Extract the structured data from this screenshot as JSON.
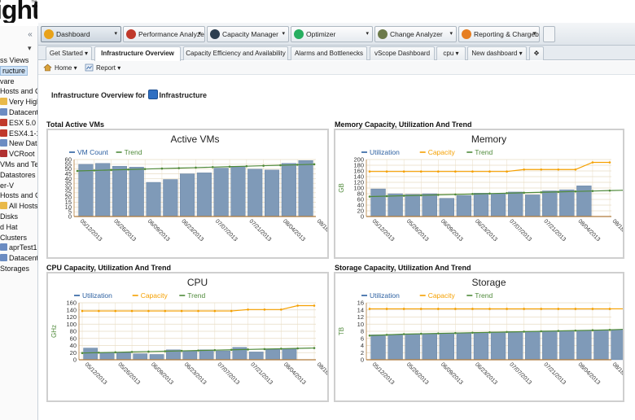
{
  "logo": {
    "text": "ight",
    "mark": "™"
  },
  "sidebar": {
    "collapse_icon": "double-chevron-left",
    "items": [
      {
        "label": "ss Views",
        "icon": ""
      },
      {
        "label": "ructure",
        "icon": "",
        "selected": true
      },
      {
        "label": "vare",
        "icon": ""
      },
      {
        "label": "Hosts and C",
        "icon": ""
      },
      {
        "label": "Very High",
        "icon": "folder"
      },
      {
        "label": "Datacente",
        "icon": "datacenter"
      },
      {
        "label": "ESX 5.0",
        "icon": "host-warning"
      },
      {
        "label": "ESX4.1-1",
        "icon": "host-warning"
      },
      {
        "label": "New Data",
        "icon": "datacenter"
      },
      {
        "label": "VCRoot",
        "icon": "vc"
      },
      {
        "label": "VMs and Ten",
        "icon": ""
      },
      {
        "label": "Datastores",
        "icon": ""
      },
      {
        "label": "er-V",
        "icon": ""
      },
      {
        "label": "Hosts and C",
        "icon": ""
      },
      {
        "label": "All Hosts",
        "icon": "folder"
      },
      {
        "label": "Disks",
        "icon": ""
      },
      {
        "label": "d Hat",
        "icon": ""
      },
      {
        "label": "Clusters",
        "icon": ""
      },
      {
        "label": "aprTest1",
        "icon": "datacenter"
      },
      {
        "label": "Datacente",
        "icon": "datacenter"
      },
      {
        "label": "Storages",
        "icon": ""
      }
    ]
  },
  "toolbar": [
    {
      "label": "Dashboard",
      "icon": "dashboard-icon",
      "color": "#e8a21a",
      "active": true
    },
    {
      "label": "Performance Analyzer",
      "icon": "performance-icon",
      "color": "#c0392b"
    },
    {
      "label": "Capacity Manager",
      "icon": "capacity-icon",
      "color": "#2c3e50"
    },
    {
      "label": "Optimizer",
      "icon": "optimizer-icon",
      "color": "#27ae60"
    },
    {
      "label": "Change Analyzer",
      "icon": "change-icon",
      "color": "#6c7a4a"
    },
    {
      "label": "Reporting & Chargeback",
      "icon": "reporting-icon",
      "color": "#e67e22"
    }
  ],
  "tabs": [
    {
      "label": "Get Started",
      "dropdown": true
    },
    {
      "label": "Infrastructure Overview",
      "active": true
    },
    {
      "label": "Capacity Efficiency and Availability"
    },
    {
      "label": "Alarms and Bottlenecks"
    },
    {
      "label": "vScope Dashboard"
    },
    {
      "label": "cpu",
      "dropdown": true
    },
    {
      "label": "New dashboard",
      "dropdown": true
    }
  ],
  "tab_add_icon": "add-tab-icon",
  "subbar": {
    "home_label": "Home",
    "report_label": "Report"
  },
  "overview": {
    "prefix": "Infrastructure Overview for",
    "target": "Infrastructure"
  },
  "colors": {
    "bar": "#7f9ab8",
    "bar_edge": "#5e7a9b",
    "trend": "#4f8a3a",
    "capacity": "#f5a000",
    "utilization_legend": "#2b5fa0",
    "grid": "#e8dcc4",
    "axis": "#b07a3a"
  },
  "charts": [
    {
      "panel_title": "Total Active VMs",
      "chart_data": {
        "type": "bar",
        "title": "Active VMs",
        "ylabel": "",
        "ylim": [
          0,
          60
        ],
        "yticks": [
          0,
          5,
          10,
          15,
          20,
          25,
          30,
          35,
          40,
          45,
          50,
          55,
          60
        ],
        "xtick_labels": [
          "05/12/2013",
          "05/26/2013",
          "06/09/2013",
          "06/23/2013",
          "07/07/2013",
          "07/21/2013",
          "08/04/2013",
          "08/18/2013"
        ],
        "legend": [
          "VM Count",
          "Trend"
        ],
        "series": [
          {
            "name": "VM Count",
            "kind": "bar",
            "values": [
              55,
              56,
              53,
              52,
              36,
              39,
              45,
              46,
              51,
              53,
              50,
              49,
              56,
              59
            ]
          },
          {
            "name": "Trend",
            "kind": "line",
            "values": [
              48,
              48.5,
              49,
              49.5,
              50,
              50.5,
              51,
              51.5,
              52,
              52.5,
              53,
              53.5,
              54,
              54.5,
              55
            ]
          }
        ]
      }
    },
    {
      "panel_title": "Memory Capacity, Utilization And Trend",
      "chart_data": {
        "type": "bar",
        "title": "Memory",
        "ylabel": "GB",
        "ylim": [
          0,
          200
        ],
        "yticks": [
          0,
          20,
          40,
          60,
          80,
          100,
          120,
          140,
          160,
          180,
          200
        ],
        "xtick_labels": [
          "05/12/2013",
          "05/26/2013",
          "06/09/2013",
          "06/23/2013",
          "07/07/2013",
          "07/21/2013",
          "08/04/2013",
          "08/18/2013"
        ],
        "legend": [
          "Utilization",
          "Capacity",
          "Trend"
        ],
        "series": [
          {
            "name": "Utilization",
            "kind": "bar",
            "values": [
              97,
              80,
              78,
              80,
              64,
              74,
              82,
              80,
              86,
              76,
              90,
              94,
              108
            ]
          },
          {
            "name": "Capacity",
            "kind": "line",
            "values": [
              158,
              158,
              158,
              158,
              158,
              158,
              158,
              158,
              158,
              165,
              165,
              165,
              165,
              190,
              190
            ]
          },
          {
            "name": "Trend",
            "kind": "line",
            "values": [
              70,
              71.5,
              73,
              74.5,
              76,
              77.5,
              79,
              80.5,
              82,
              83.5,
              85,
              86.5,
              88,
              89.5,
              91,
              92.5,
              94,
              95
            ]
          }
        ]
      }
    },
    {
      "panel_title": "CPU Capacity, Utilization And Trend",
      "chart_data": {
        "type": "bar",
        "title": "CPU",
        "ylabel": "GHz",
        "ylim": [
          0,
          160
        ],
        "yticks": [
          0,
          20,
          40,
          60,
          80,
          100,
          120,
          140,
          160
        ],
        "xtick_labels": [
          "05/12/2013",
          "05/26/2013",
          "06/09/2013",
          "06/23/2013",
          "07/07/2013",
          "07/21/2013",
          "08/04/2013",
          "08/18/2013"
        ],
        "legend": [
          "Utilization",
          "Capacity",
          "Trend"
        ],
        "series": [
          {
            "name": "Utilization",
            "kind": "bar",
            "values": [
              33,
              20,
              20,
              17,
              15,
              28,
              25,
              28,
              25,
              35,
              22,
              29,
              30
            ]
          },
          {
            "name": "Capacity",
            "kind": "line",
            "values": [
              137,
              137,
              137,
              137,
              137,
              137,
              137,
              137,
              137,
              137,
              141,
              141,
              141,
              152,
              152
            ]
          },
          {
            "name": "Trend",
            "kind": "line",
            "values": [
              19,
              20,
              21,
              22,
              23,
              24,
              25,
              26,
              27,
              28,
              29,
              30,
              31,
              32,
              33
            ]
          }
        ]
      }
    },
    {
      "panel_title": "Storage Capacity, Utilization And Trend",
      "chart_data": {
        "type": "bar",
        "title": "Storage",
        "ylabel": "TB",
        "ylim": [
          0,
          16
        ],
        "yticks": [
          0,
          2,
          4,
          6,
          8,
          10,
          12,
          14,
          16
        ],
        "xtick_labels": [
          "05/12/2013",
          "05/26/2013",
          "06/09/2013",
          "06/23/2013",
          "07/07/2013",
          "07/21/2013",
          "08/04/2013",
          "08/18/2013"
        ],
        "legend": [
          "Utilization",
          "Capacity",
          "Trend"
        ],
        "series": [
          {
            "name": "Utilization",
            "kind": "bar",
            "values": [
              7.0,
              7.1,
              7.2,
              7.3,
              7.5,
              7.6,
              7.7,
              7.8,
              7.9,
              8.0,
              8.1,
              8.2,
              8.3,
              8.4,
              8.5
            ]
          },
          {
            "name": "Capacity",
            "kind": "line",
            "values": [
              14.3,
              14.3,
              14.3,
              14.3,
              14.3,
              14.3,
              14.3,
              14.3,
              14.3,
              14.3,
              14.3,
              14.3,
              14.3,
              14.3,
              14.3,
              14.3
            ]
          },
          {
            "name": "Trend",
            "kind": "line",
            "values": [
              6.8,
              7.0,
              7.2,
              7.3,
              7.4,
              7.5,
              7.6,
              7.7,
              7.8,
              7.9,
              8.0,
              8.1,
              8.2,
              8.3,
              8.4,
              8.6
            ]
          }
        ]
      }
    }
  ]
}
